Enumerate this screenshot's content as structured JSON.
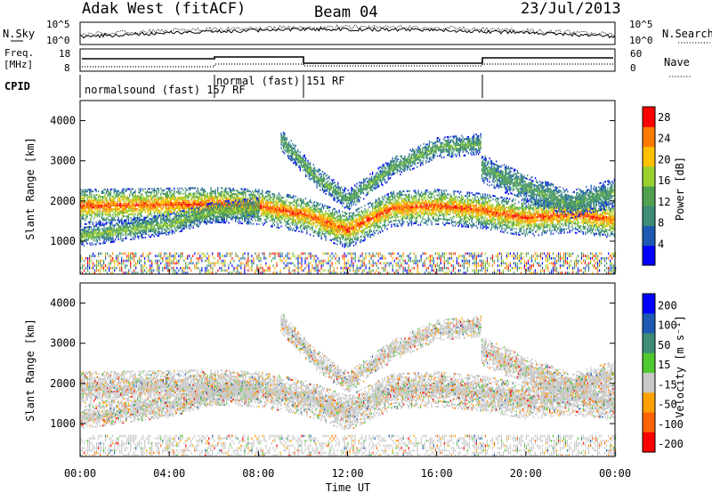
{
  "header": {
    "title_left": "Adak West (fitACF)",
    "title_center": "Beam 04",
    "title_right": "23/Jul/2013"
  },
  "panels": {
    "nsky_label": "N.Sky",
    "nsearch_label": "N.Search",
    "freq_label_line1": "Freq.",
    "freq_label_line2": "[MHz]",
    "nave_label": "Nave",
    "cpid_label": "CPID",
    "nsky_ticks": [
      "10^5",
      "10^0"
    ],
    "nsearch_ticks": [
      "10^5",
      "10^0"
    ],
    "freq_ticks": [
      "18",
      "8"
    ],
    "nave_ticks": [
      "60",
      "0"
    ],
    "cpid_modes": [
      "normalsound (fast) 157 RF",
      "normal (fast) 151 RF"
    ]
  },
  "chart_data": [
    {
      "type": "heatmap",
      "name": "power",
      "ylabel": "Slant Range [km]",
      "ylim": [
        180,
        4500
      ],
      "yticks": [
        1000,
        2000,
        3000,
        4000
      ],
      "colorbar_label": "Power [dB]",
      "colorbar_ticks": [
        4,
        8,
        12,
        16,
        20,
        24,
        28
      ],
      "colorbar_range": [
        0,
        30
      ],
      "colors": [
        "#0000ff",
        "#1e5ab4",
        "#3c8c78",
        "#50a050",
        "#98d030",
        "#ffc000",
        "#ff7a00",
        "#ff0000"
      ],
      "echo_bands": [
        {
          "t": [
            0,
            6,
            8,
            10,
            12,
            14,
            16,
            18,
            20,
            22,
            24
          ],
          "center": [
            1850,
            1900,
            1850,
            1650,
            1250,
            1800,
            1850,
            1750,
            1550,
            1650,
            1500
          ],
          "width": 450,
          "power": 22
        },
        {
          "t": [
            0,
            4,
            6,
            8
          ],
          "center": [
            1100,
            1400,
            1700,
            1800
          ],
          "width": 250,
          "power": 12
        },
        {
          "t": [
            9,
            10.5,
            12,
            14,
            16,
            18
          ],
          "center": [
            3500,
            2600,
            2000,
            2800,
            3300,
            3400
          ],
          "width": 250,
          "power": 10
        },
        {
          "t": [
            18,
            20,
            22,
            24
          ],
          "center": [
            2800,
            2300,
            1900,
            2200
          ],
          "width": 350,
          "power": 9
        }
      ]
    },
    {
      "type": "heatmap",
      "name": "velocity",
      "xlabel": "Time UT",
      "ylabel": "Slant Range [km]",
      "ylim": [
        180,
        4500
      ],
      "yticks": [
        1000,
        2000,
        3000,
        4000
      ],
      "xlim": [
        0,
        24
      ],
      "xticks": [
        "00:00",
        "04:00",
        "08:00",
        "12:00",
        "16:00",
        "20:00",
        "00:00"
      ],
      "colorbar_label": "Velocity [m s⁻¹]",
      "colorbar_ticks": [
        "200",
        "100",
        "50",
        "15",
        "-15",
        "-50",
        "-100",
        "-200"
      ],
      "colors": [
        "#0000ff",
        "#1e5ab4",
        "#3c8c78",
        "#50c830",
        "#c8c8c8",
        "#ffa000",
        "#ff6400",
        "#ff0000"
      ]
    }
  ]
}
